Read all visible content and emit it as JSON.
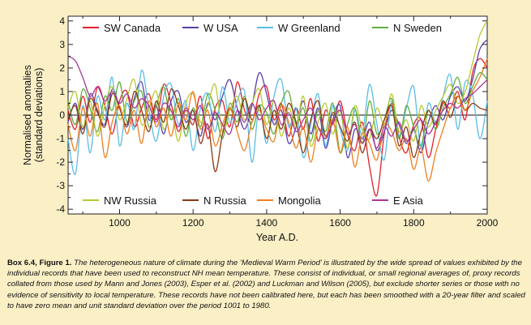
{
  "chart_data": {
    "type": "line",
    "xlabel": "Year A.D.",
    "ylabel_lines": [
      "Normalised anomalies",
      "(standard deviations)"
    ],
    "xlim": [
      860,
      2000
    ],
    "ylim": [
      -4.2,
      4.2
    ],
    "xticks": [
      1000,
      1200,
      1400,
      1600,
      1800,
      2000
    ],
    "yticks": [
      -4,
      -3,
      -2,
      -1,
      0,
      1,
      2,
      3,
      4
    ],
    "zero_line": true,
    "series": [
      {
        "name": "SW Canada",
        "color": "#e2202b",
        "x": [
          860,
          880,
          900,
          920,
          940,
          960,
          980,
          1000,
          1020,
          1040,
          1060,
          1080,
          1100,
          1120,
          1140,
          1160,
          1180,
          1200,
          1220,
          1240,
          1260,
          1280,
          1300,
          1320,
          1340,
          1360,
          1380,
          1400,
          1420,
          1440,
          1460,
          1480,
          1500,
          1520,
          1540,
          1560,
          1580,
          1600,
          1620,
          1640,
          1660,
          1680,
          1700,
          1720,
          1740,
          1760,
          1780,
          1800,
          1820,
          1840,
          1860,
          1880,
          1900,
          1920,
          1940,
          1960,
          1980,
          2000
        ],
        "y": [
          0.2,
          -0.6,
          0.8,
          -0.3,
          1.2,
          0.4,
          -0.8,
          0.6,
          1.0,
          -0.5,
          0.3,
          0.9,
          -0.2,
          1.3,
          0.5,
          -0.7,
          0.2,
          -0.4,
          0.8,
          -1.0,
          0.3,
          0.6,
          -0.5,
          1.4,
          0.2,
          -0.3,
          0.9,
          1.2,
          -0.2,
          0.5,
          -0.9,
          0.3,
          -0.6,
          0.7,
          -1.1,
          0.2,
          -0.4,
          0.6,
          -0.8,
          -1.5,
          -0.3,
          -2.2,
          -3.4,
          -0.8,
          0.5,
          -0.9,
          -1.6,
          -0.4,
          -0.2,
          -1.8,
          -0.6,
          0.5,
          0.3,
          1.0,
          -0.2,
          1.8,
          2.4,
          2.0
        ]
      },
      {
        "name": "W USA",
        "color": "#5a3fa8",
        "x": [
          860,
          880,
          900,
          920,
          940,
          960,
          980,
          1000,
          1020,
          1040,
          1060,
          1080,
          1100,
          1120,
          1140,
          1160,
          1180,
          1200,
          1220,
          1240,
          1260,
          1280,
          1300,
          1320,
          1340,
          1360,
          1380,
          1400,
          1420,
          1440,
          1460,
          1480,
          1500,
          1520,
          1540,
          1560,
          1580,
          1600,
          1620,
          1640,
          1660,
          1680,
          1700,
          1720,
          1740,
          1760,
          1780,
          1800,
          1820,
          1840,
          1860,
          1880,
          1900,
          1920,
          1940,
          1960,
          1980,
          2000
        ],
        "y": [
          -0.3,
          0.5,
          -0.6,
          0.9,
          0.2,
          -0.4,
          1.1,
          0.3,
          -0.5,
          0.7,
          1.4,
          -0.2,
          0.4,
          -0.8,
          0.6,
          1.0,
          -0.3,
          0.2,
          -0.9,
          0.5,
          -0.2,
          0.8,
          1.5,
          0.3,
          -0.6,
          0.4,
          1.8,
          0.9,
          -0.4,
          0.2,
          -1.2,
          -0.5,
          0.6,
          -0.8,
          0.3,
          -1.4,
          -0.2,
          0.4,
          -1.8,
          -0.6,
          -1.0,
          -0.3,
          -1.5,
          -0.7,
          0.2,
          -0.4,
          -1.2,
          -0.6,
          -1.6,
          -0.3,
          0.4,
          -0.2,
          0.8,
          1.2,
          0.6,
          1.5,
          2.8,
          3.2
        ]
      },
      {
        "name": "W Greenland",
        "color": "#5bbde8",
        "x": [
          860,
          880,
          900,
          920,
          940,
          960,
          980,
          1000,
          1020,
          1040,
          1060,
          1080,
          1100,
          1120,
          1140,
          1160,
          1180,
          1200,
          1220,
          1240,
          1260,
          1280,
          1300,
          1320,
          1340,
          1360,
          1380,
          1400,
          1420,
          1440,
          1460,
          1480,
          1500,
          1520,
          1540,
          1560,
          1580,
          1600,
          1620,
          1640,
          1660,
          1680,
          1700,
          1720,
          1740,
          1760,
          1780,
          1800,
          1820,
          1840,
          1860,
          1880,
          1900,
          1920,
          1940,
          1960,
          1980,
          2000
        ],
        "y": [
          -1.0,
          -2.5,
          0.4,
          -1.6,
          0.8,
          -0.2,
          1.6,
          -1.3,
          0.5,
          -0.6,
          1.9,
          0.2,
          -1.1,
          0.8,
          1.3,
          -0.4,
          0.6,
          -1.5,
          0.3,
          0.9,
          -0.7,
          1.2,
          -0.3,
          0.6,
          1.0,
          -2.0,
          0.4,
          -1.2,
          0.8,
          1.5,
          -0.5,
          0.3,
          -1.8,
          -0.4,
          0.9,
          -1.3,
          0.4,
          -0.6,
          -1.5,
          0.2,
          -0.8,
          1.3,
          -0.4,
          -1.9,
          0.6,
          -0.9,
          0.3,
          1.2,
          -1.4,
          0.5,
          -0.3,
          0.8,
          1.7,
          -0.6,
          1.4,
          0.9,
          -1.0,
          0.6
        ]
      },
      {
        "name": "N Sweden",
        "color": "#5fae3a",
        "x": [
          860,
          880,
          900,
          920,
          940,
          960,
          980,
          1000,
          1020,
          1040,
          1060,
          1080,
          1100,
          1120,
          1140,
          1160,
          1180,
          1200,
          1220,
          1240,
          1260,
          1280,
          1300,
          1320,
          1340,
          1360,
          1380,
          1400,
          1420,
          1440,
          1460,
          1480,
          1500,
          1520,
          1540,
          1560,
          1580,
          1600,
          1620,
          1640,
          1660,
          1680,
          1700,
          1720,
          1740,
          1760,
          1780,
          1800,
          1820,
          1840,
          1860,
          1880,
          1900,
          1920,
          1940,
          1960,
          1980,
          2000
        ],
        "y": [
          0.6,
          -0.4,
          1.1,
          0.3,
          -0.7,
          0.8,
          0.2,
          1.4,
          -0.3,
          0.6,
          1.0,
          -0.5,
          0.4,
          1.2,
          -0.2,
          0.7,
          -0.9,
          0.3,
          -0.5,
          0.9,
          0.2,
          -1.0,
          0.5,
          -0.3,
          0.8,
          -0.6,
          0.4,
          0.1,
          -0.8,
          0.5,
          1.0,
          -0.4,
          0.3,
          -1.1,
          0.2,
          -0.7,
          0.5,
          -1.6,
          -0.4,
          0.3,
          -1.2,
          0.6,
          -0.8,
          -0.2,
          0.7,
          -1.0,
          0.4,
          -0.5,
          -1.3,
          0.2,
          -0.6,
          0.3,
          0.9,
          1.6,
          0.5,
          1.2,
          1.8,
          1.5
        ]
      },
      {
        "name": "NW Russia",
        "color": "#b8c830",
        "x": [
          860,
          880,
          900,
          920,
          940,
          960,
          980,
          1000,
          1020,
          1040,
          1060,
          1080,
          1100,
          1120,
          1140,
          1160,
          1180,
          1200,
          1220,
          1240,
          1260,
          1280,
          1300,
          1320,
          1340,
          1360,
          1380,
          1400,
          1420,
          1440,
          1460,
          1480,
          1500,
          1520,
          1540,
          1560,
          1580,
          1600,
          1620,
          1640,
          1660,
          1680,
          1700,
          1720,
          1740,
          1760,
          1780,
          1800,
          1820,
          1840,
          1860,
          1880,
          1900,
          1920,
          1940,
          1960,
          1980,
          2000
        ],
        "y": [
          0.3,
          1.0,
          -0.5,
          0.6,
          -0.9,
          0.4,
          1.2,
          -0.2,
          0.7,
          1.5,
          -0.4,
          0.3,
          1.0,
          -0.6,
          0.2,
          -1.1,
          0.5,
          0.9,
          -0.3,
          0.4,
          1.3,
          -0.7,
          0.2,
          0.8,
          -0.2,
          0.5,
          1.1,
          -0.4,
          0.6,
          -0.9,
          0.3,
          -0.5,
          0.8,
          -1.3,
          -0.3,
          0.5,
          -0.8,
          0.2,
          -1.4,
          0.4,
          -0.6,
          -1.0,
          0.3,
          -0.4,
          0.9,
          -0.7,
          -0.2,
          -1.1,
          0.4,
          -0.5,
          0.2,
          0.8,
          1.3,
          0.5,
          1.0,
          2.2,
          3.4,
          4.0
        ]
      },
      {
        "name": "N Russia",
        "color": "#8a3a12",
        "x": [
          860,
          880,
          900,
          920,
          940,
          960,
          980,
          1000,
          1020,
          1040,
          1060,
          1080,
          1100,
          1120,
          1140,
          1160,
          1180,
          1200,
          1220,
          1240,
          1260,
          1280,
          1300,
          1320,
          1340,
          1360,
          1380,
          1400,
          1420,
          1440,
          1460,
          1480,
          1500,
          1520,
          1540,
          1560,
          1580,
          1600,
          1620,
          1640,
          1660,
          1680,
          1700,
          1720,
          1740,
          1760,
          1780,
          1800,
          1820,
          1840,
          1860,
          1880,
          1900,
          1920,
          1940,
          1960,
          1980,
          2000
        ],
        "y": [
          -0.2,
          0.4,
          -0.8,
          0.7,
          0.1,
          -0.5,
          0.9,
          0.3,
          -0.4,
          1.0,
          0.2,
          -0.7,
          0.6,
          -0.3,
          1.1,
          0.4,
          -0.6,
          0.2,
          -1.2,
          -0.4,
          -2.4,
          -0.8,
          0.3,
          -0.5,
          0.7,
          -0.2,
          0.4,
          -1.0,
          0.2,
          -0.6,
          0.5,
          -0.3,
          -1.6,
          -0.2,
          0.6,
          -0.9,
          0.1,
          -0.5,
          -1.1,
          -0.3,
          -1.6,
          -0.6,
          -1.0,
          -0.2,
          0.4,
          -1.3,
          -0.5,
          -1.8,
          -0.7,
          0.2,
          -0.4,
          0.6,
          -0.1,
          0.8,
          0.2,
          0.5,
          0.3,
          0.2
        ]
      },
      {
        "name": "Mongolia",
        "color": "#f07d1e",
        "x": [
          860,
          880,
          900,
          920,
          940,
          960,
          980,
          1000,
          1020,
          1040,
          1060,
          1080,
          1100,
          1120,
          1140,
          1160,
          1180,
          1200,
          1220,
          1240,
          1260,
          1280,
          1300,
          1320,
          1340,
          1360,
          1380,
          1400,
          1420,
          1440,
          1460,
          1480,
          1500,
          1520,
          1540,
          1560,
          1580,
          1600,
          1620,
          1640,
          1660,
          1680,
          1700,
          1720,
          1740,
          1760,
          1780,
          1800,
          1820,
          1840,
          1860,
          1880,
          1900,
          1920,
          1940,
          1960,
          1980,
          2000
        ],
        "y": [
          -0.4,
          -1.5,
          0.3,
          -0.9,
          0.5,
          -1.8,
          -0.3,
          0.4,
          -0.8,
          0.2,
          -1.2,
          0.6,
          -0.5,
          0.3,
          -0.9,
          0.5,
          -0.2,
          1.0,
          -0.6,
          0.2,
          -1.3,
          -0.4,
          0.3,
          -0.7,
          -1.5,
          -0.3,
          0.2,
          -0.6,
          -1.1,
          0.4,
          -0.3,
          -1.4,
          -0.5,
          -2.0,
          -0.6,
          -1.0,
          -0.2,
          -1.6,
          -0.5,
          -2.2,
          -0.8,
          -1.2,
          -1.9,
          -0.4,
          -0.7,
          -1.5,
          -1.0,
          -2.3,
          -1.4,
          -2.8,
          -1.6,
          -0.6,
          0.3,
          0.8,
          0.2,
          1.0,
          1.6,
          2.4
        ]
      },
      {
        "name": "E Asia",
        "color": "#a8359a",
        "x": [
          860,
          880,
          900,
          920,
          940,
          960,
          980,
          1000,
          1020,
          1040,
          1060,
          1080,
          1100,
          1120,
          1140,
          1160,
          1180,
          1200,
          1220,
          1240,
          1260,
          1280,
          1300,
          1320,
          1340,
          1360,
          1380,
          1400,
          1420,
          1440,
          1460,
          1480,
          1500,
          1520,
          1540,
          1560,
          1580,
          1600,
          1620,
          1640,
          1660,
          1680,
          1700,
          1720,
          1740,
          1760,
          1780,
          1800,
          1820,
          1840,
          1860,
          1880,
          1900,
          1920,
          1940,
          1960,
          1980,
          2000
        ],
        "y": [
          2.5,
          2.3,
          1.6,
          0.8,
          1.2,
          0.6,
          1.0,
          0.5,
          0.9,
          0.3,
          0.7,
          0.4,
          -0.3,
          0.5,
          0.2,
          -0.5,
          0.3,
          -0.2,
          0.4,
          -0.6,
          0.1,
          -0.4,
          -0.8,
          0.2,
          -0.3,
          0.5,
          -0.2,
          0.3,
          0.6,
          -0.4,
          0.1,
          -0.7,
          -0.2,
          0.3,
          -0.5,
          -1.0,
          -0.3,
          0.2,
          -0.8,
          -0.4,
          -1.2,
          -0.6,
          -1.4,
          -0.5,
          -0.9,
          -0.3,
          -1.1,
          -0.6,
          -0.2,
          -0.8,
          -0.3,
          0.2,
          0.5,
          0.3,
          0.7,
          0.9,
          1.2,
          1.5
        ]
      }
    ]
  },
  "caption": {
    "label": "Box 6.4, Figure 1.",
    "text": "The heterogeneous nature of climate during the ‘Medieval Warm Period’ is illustrated by the wide spread of values exhibited by the individual records that have been used to reconstruct NH mean temperature. These consist of individual, or small regional averages of, proxy records collated from those used by Mann and Jones (2003), Esper et al. (2002) and Luckman and Wilson (2005), but exclude shorter series or those with no evidence of sensitivity to local temperature. These records have not been calibrated here, but each has been smoothed with a 20-year filter and scaled to have zero mean and unit standard deviation over the period 1001 to 1980."
  }
}
